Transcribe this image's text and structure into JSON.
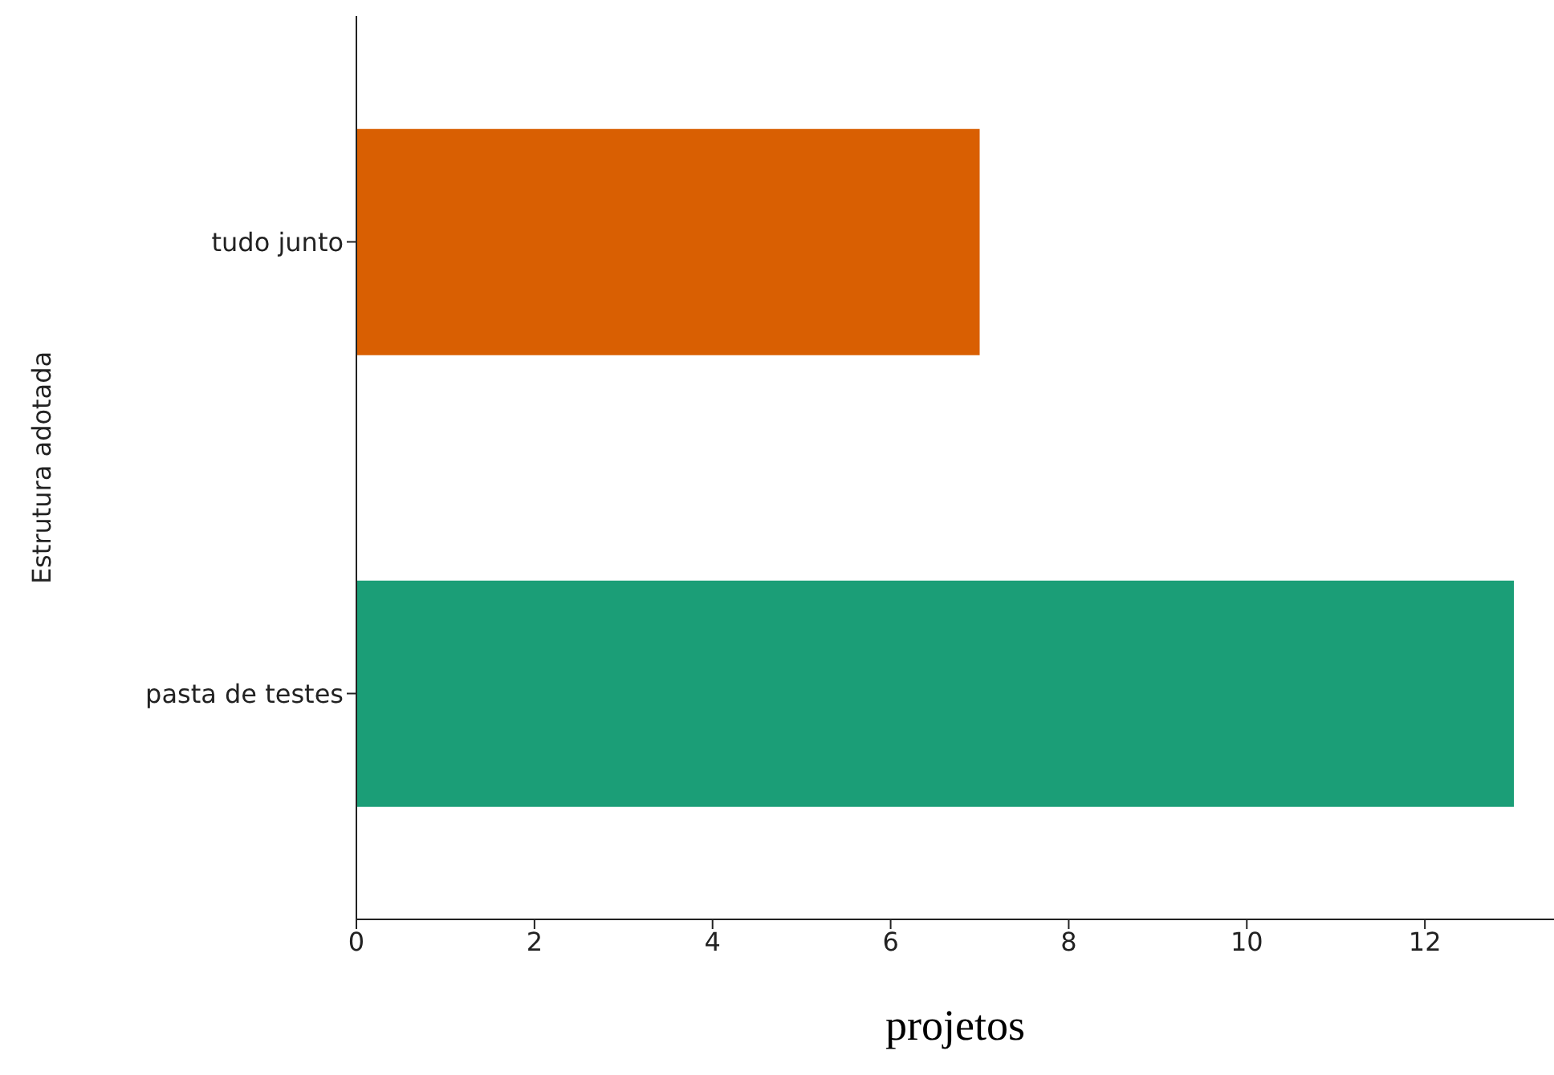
{
  "chart_data": {
    "type": "bar",
    "orientation": "horizontal",
    "categories": [
      "tudo junto",
      "pasta de testes"
    ],
    "values": [
      7,
      13
    ],
    "colors": [
      "#d95f02",
      "#1b9e77"
    ],
    "xlim": [
      0,
      13.45
    ],
    "xticks": [
      0,
      2,
      4,
      6,
      8,
      10,
      12
    ],
    "xlabel": "projetos",
    "ylabel": "Estrutura adotada",
    "grid": false,
    "legend": false
  }
}
